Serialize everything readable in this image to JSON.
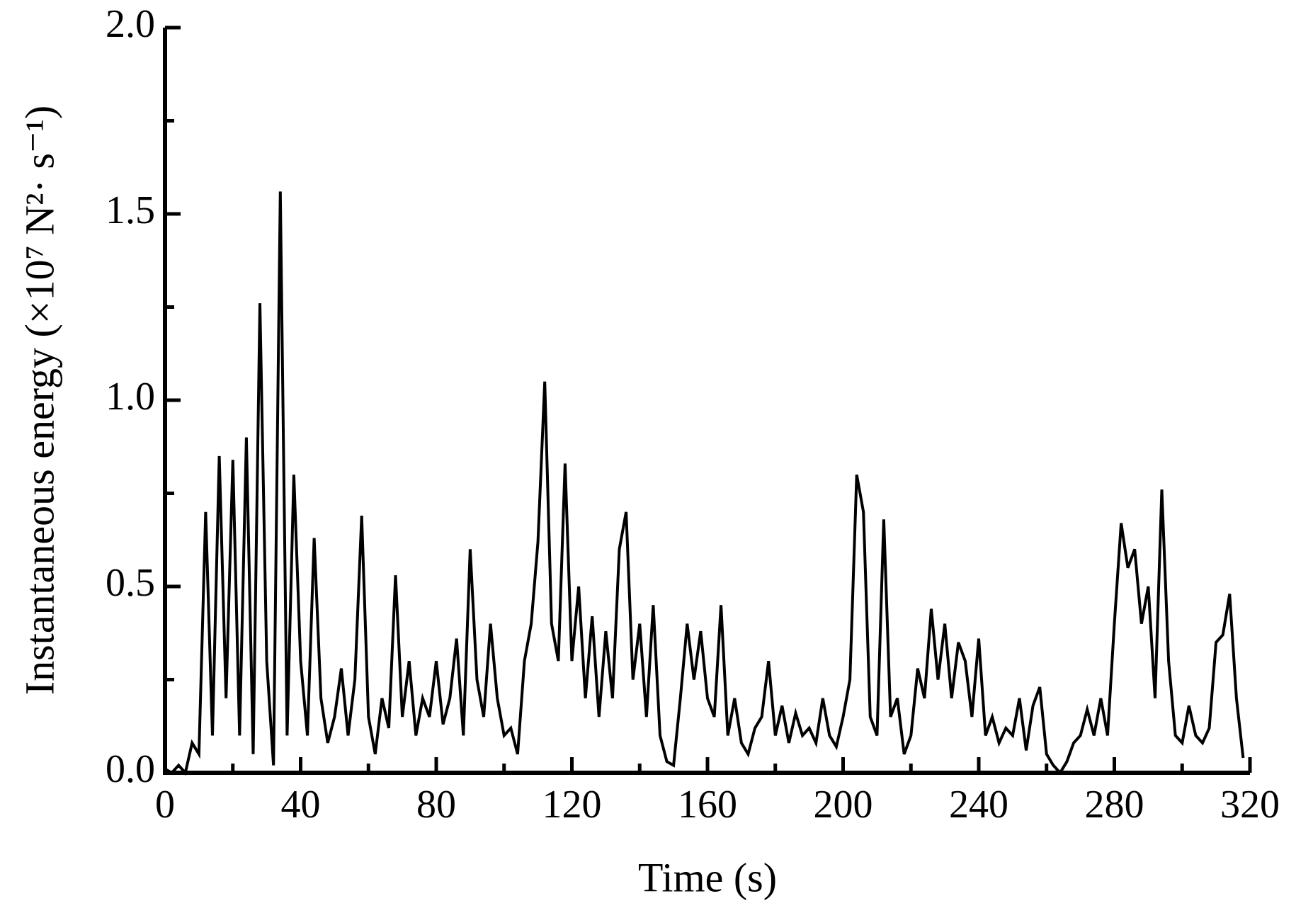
{
  "chart_data": {
    "type": "line",
    "x_label": "Time (s)",
    "y_label": "Instantaneous energy (×10⁷ N²· s⁻¹)",
    "xlim": [
      0,
      320
    ],
    "xticks": [
      0,
      40,
      80,
      120,
      160,
      200,
      240,
      280,
      320
    ],
    "x_minor_ticks": [
      20,
      60,
      100,
      140,
      180,
      220,
      260,
      300
    ],
    "ylim": [
      0,
      2
    ],
    "yticks": [
      {
        "value": 0,
        "label": "0.0"
      },
      0.5,
      {
        "value": 1,
        "label": "1.0"
      },
      1.5,
      {
        "value": 2,
        "label": "2.0"
      }
    ],
    "y_minor_ticks": [
      0.25,
      0.75,
      1.25,
      1.75
    ],
    "grid": false,
    "series": [
      {
        "color": "#000000",
        "x": [
          0,
          2,
          4,
          6,
          8,
          10,
          12,
          14,
          16,
          18,
          20,
          22,
          24,
          26,
          28,
          30,
          32,
          34,
          36,
          38,
          40,
          42,
          44,
          46,
          48,
          50,
          52,
          54,
          56,
          58,
          60,
          62,
          64,
          66,
          68,
          70,
          72,
          74,
          76,
          78,
          80,
          82,
          84,
          86,
          88,
          90,
          92,
          94,
          96,
          98,
          100,
          102,
          104,
          106,
          108,
          110,
          112,
          114,
          116,
          118,
          120,
          122,
          124,
          126,
          128,
          130,
          132,
          134,
          136,
          138,
          140,
          142,
          144,
          146,
          148,
          150,
          152,
          154,
          156,
          158,
          160,
          162,
          164,
          166,
          168,
          170,
          172,
          174,
          176,
          178,
          180,
          182,
          184,
          186,
          188,
          190,
          192,
          194,
          196,
          198,
          200,
          202,
          204,
          206,
          208,
          210,
          212,
          214,
          216,
          218,
          220,
          222,
          224,
          226,
          228,
          230,
          232,
          234,
          236,
          238,
          240,
          242,
          244,
          246,
          248,
          250,
          252,
          254,
          256,
          258,
          260,
          262,
          264,
          266,
          268,
          270,
          272,
          274,
          276,
          278,
          280,
          282,
          284,
          286,
          288,
          290,
          292,
          294,
          296,
          298,
          300,
          302,
          304,
          306,
          308,
          310,
          312,
          314,
          316,
          318
        ],
        "values": [
          0.01,
          0,
          0.02,
          0,
          0.08,
          0.05,
          0.7,
          0.1,
          0.85,
          0.2,
          0.84,
          0.1,
          0.9,
          0.05,
          1.26,
          0.3,
          0.02,
          1.56,
          0.1,
          0.8,
          0.3,
          0.1,
          0.63,
          0.2,
          0.08,
          0.15,
          0.28,
          0.1,
          0.25,
          0.69,
          0.15,
          0.05,
          0.2,
          0.12,
          0.53,
          0.15,
          0.3,
          0.1,
          0.2,
          0.15,
          0.3,
          0.13,
          0.2,
          0.36,
          0.1,
          0.6,
          0.25,
          0.15,
          0.4,
          0.2,
          0.1,
          0.12,
          0.05,
          0.3,
          0.4,
          0.62,
          1.05,
          0.4,
          0.3,
          0.83,
          0.3,
          0.5,
          0.2,
          0.42,
          0.15,
          0.38,
          0.2,
          0.6,
          0.7,
          0.25,
          0.4,
          0.15,
          0.45,
          0.1,
          0.03,
          0.02,
          0.2,
          0.4,
          0.25,
          0.38,
          0.2,
          0.15,
          0.45,
          0.1,
          0.2,
          0.08,
          0.05,
          0.12,
          0.15,
          0.3,
          0.1,
          0.18,
          0.08,
          0.16,
          0.1,
          0.12,
          0.08,
          0.2,
          0.1,
          0.07,
          0.15,
          0.25,
          0.8,
          0.7,
          0.15,
          0.1,
          0.68,
          0.15,
          0.2,
          0.05,
          0.1,
          0.28,
          0.2,
          0.44,
          0.25,
          0.4,
          0.2,
          0.35,
          0.3,
          0.15,
          0.36,
          0.1,
          0.15,
          0.08,
          0.12,
          0.1,
          0.2,
          0.06,
          0.18,
          0.23,
          0.05,
          0.02,
          0,
          0.03,
          0.08,
          0.1,
          0.17,
          0.1,
          0.2,
          0.1,
          0.4,
          0.67,
          0.55,
          0.6,
          0.4,
          0.5,
          0.2,
          0.76,
          0.3,
          0.1,
          0.08,
          0.18,
          0.1,
          0.08,
          0.12,
          0.35,
          0.37,
          0.48,
          0.2,
          0.04
        ]
      }
    ]
  }
}
